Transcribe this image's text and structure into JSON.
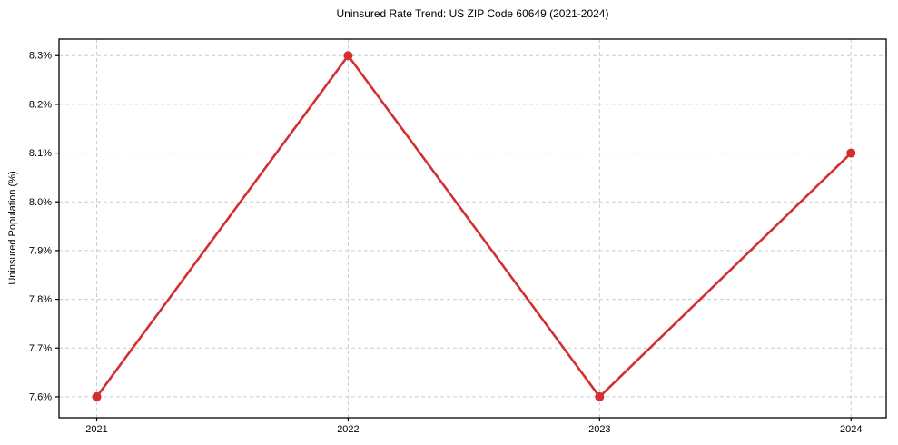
{
  "chart_data": {
    "type": "line",
    "title": "Uninsured Rate Trend: US ZIP Code 60649 (2021-2024)",
    "ylabel": "Uninsured Population (%)",
    "xlabel": "",
    "x": [
      2021,
      2022,
      2023,
      2024
    ],
    "values": [
      7.6,
      8.3,
      7.6,
      8.1
    ],
    "xtick_labels": [
      "2021",
      "2022",
      "2023",
      "2024"
    ],
    "ytick_values": [
      7.6,
      7.7,
      7.8,
      7.9,
      8.0,
      8.1,
      8.2,
      8.3
    ],
    "ytick_labels": [
      "7.6%",
      "7.7%",
      "7.8%",
      "7.9%",
      "8.0%",
      "8.1%",
      "8.2%",
      "8.3%"
    ],
    "xlim": [
      2020.85,
      2024.14
    ],
    "ylim": [
      7.557,
      8.334
    ],
    "grid": true,
    "legend": "none",
    "line_color": "#d32f2f",
    "marker_color": "#d32f2f",
    "grid_color": "#cccccc",
    "spine_color": "#000000"
  }
}
